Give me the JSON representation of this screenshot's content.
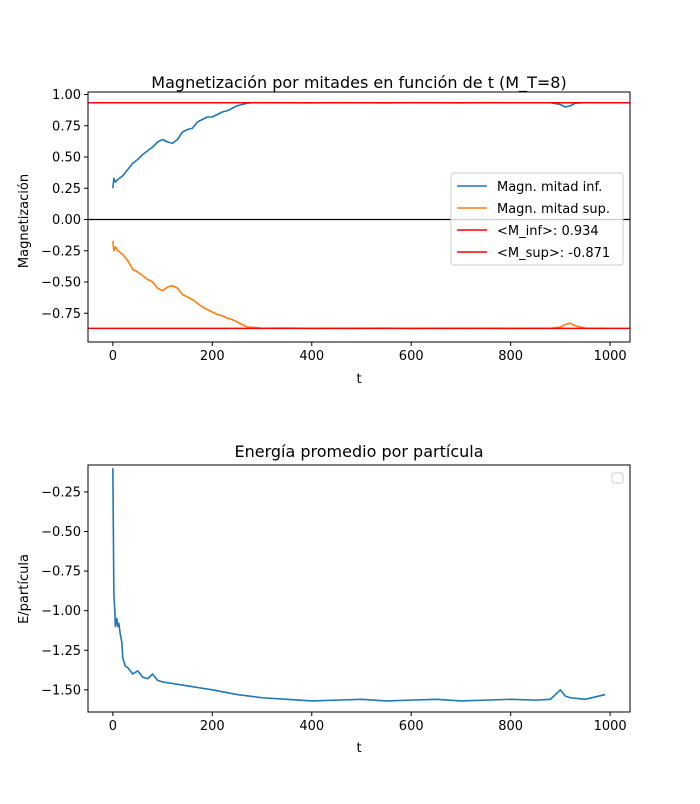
{
  "figure": {
    "colors": {
      "lower_half": "#1f77b4",
      "upper_half": "#ff7f0e",
      "mean_lines": "#ff0000",
      "zero_line": "#000000"
    }
  },
  "chart_data": [
    {
      "type": "line",
      "title": "Magnetización por mitades en función de t (M_T=8)",
      "xlabel": "t",
      "ylabel": "Magnetización",
      "xlim": [
        -50,
        1040
      ],
      "ylim": [
        -0.98,
        1.02
      ],
      "x_ticks": [
        0,
        200,
        400,
        600,
        800,
        1000
      ],
      "x_tick_labels": [
        "0",
        "200",
        "400",
        "600",
        "800",
        "1000"
      ],
      "y_ticks": [
        1.0,
        0.75,
        0.5,
        0.25,
        0.0,
        -0.25,
        -0.5,
        -0.75
      ],
      "y_tick_labels": [
        "1.00",
        "0.75",
        "0.50",
        "0.25",
        "0.00",
        "−0.25",
        "−0.50",
        "−0.75"
      ],
      "grid": false,
      "legend_position": "center-right",
      "series": [
        {
          "name": "Magn. mitad inf.",
          "kind": "line",
          "x": [
            0,
            2,
            5,
            10,
            20,
            30,
            40,
            50,
            60,
            70,
            80,
            90,
            100,
            110,
            120,
            130,
            140,
            150,
            160,
            170,
            180,
            190,
            200,
            210,
            220,
            230,
            240,
            250,
            260,
            270,
            280,
            300,
            350,
            400,
            450,
            500,
            550,
            600,
            650,
            700,
            750,
            800,
            850,
            880,
            900,
            910,
            920,
            930,
            950,
            980,
            990
          ],
          "y": [
            0.25,
            0.33,
            0.3,
            0.32,
            0.35,
            0.4,
            0.45,
            0.48,
            0.52,
            0.55,
            0.58,
            0.62,
            0.64,
            0.62,
            0.61,
            0.64,
            0.7,
            0.72,
            0.73,
            0.78,
            0.8,
            0.82,
            0.82,
            0.84,
            0.86,
            0.87,
            0.89,
            0.91,
            0.92,
            0.93,
            0.934,
            0.935,
            0.934,
            0.933,
            0.935,
            0.934,
            0.933,
            0.935,
            0.934,
            0.933,
            0.935,
            0.934,
            0.934,
            0.934,
            0.92,
            0.9,
            0.91,
            0.93,
            0.935,
            0.934,
            0.934
          ]
        },
        {
          "name": "Magn. mitad sup.",
          "kind": "line",
          "x": [
            0,
            2,
            5,
            10,
            20,
            30,
            40,
            50,
            60,
            70,
            80,
            90,
            100,
            110,
            120,
            130,
            140,
            150,
            160,
            170,
            180,
            190,
            200,
            210,
            220,
            230,
            240,
            250,
            260,
            270,
            280,
            300,
            350,
            400,
            450,
            500,
            550,
            600,
            650,
            700,
            750,
            800,
            850,
            880,
            900,
            910,
            920,
            930,
            950,
            980,
            990
          ],
          "y": [
            -0.17,
            -0.25,
            -0.22,
            -0.25,
            -0.28,
            -0.33,
            -0.4,
            -0.42,
            -0.45,
            -0.48,
            -0.5,
            -0.55,
            -0.57,
            -0.54,
            -0.53,
            -0.55,
            -0.6,
            -0.62,
            -0.64,
            -0.67,
            -0.7,
            -0.72,
            -0.74,
            -0.76,
            -0.77,
            -0.79,
            -0.8,
            -0.82,
            -0.84,
            -0.86,
            -0.862,
            -0.87,
            -0.868,
            -0.872,
            -0.87,
            -0.871,
            -0.869,
            -0.872,
            -0.87,
            -0.871,
            -0.87,
            -0.872,
            -0.87,
            -0.871,
            -0.86,
            -0.84,
            -0.83,
            -0.85,
            -0.87,
            -0.871,
            -0.871
          ]
        },
        {
          "name": "<M_inf>: 0.934",
          "kind": "hline",
          "y": 0.934
        },
        {
          "name": "<M_sup>: -0.871",
          "kind": "hline",
          "y": -0.871
        }
      ],
      "reference_line": {
        "y": 0.0
      }
    },
    {
      "type": "line",
      "title": "Energía promedio por partícula",
      "xlabel": "t",
      "ylabel": "E/partícula",
      "xlim": [
        -50,
        1040
      ],
      "ylim": [
        -1.64,
        -0.08
      ],
      "x_ticks": [
        0,
        200,
        400,
        600,
        800,
        1000
      ],
      "x_tick_labels": [
        "0",
        "200",
        "400",
        "600",
        "800",
        "1000"
      ],
      "y_ticks": [
        -0.25,
        -0.5,
        -0.75,
        -1.0,
        -1.25,
        -1.5
      ],
      "y_tick_labels": [
        "−0.25",
        "−0.50",
        "−0.75",
        "−1.00",
        "−1.25",
        "−1.50"
      ],
      "grid": false,
      "legend_position": "top-right",
      "series": [
        {
          "kind": "line",
          "x": [
            0,
            1,
            2,
            3,
            4,
            5,
            8,
            10,
            12,
            15,
            18,
            20,
            25,
            30,
            40,
            50,
            60,
            70,
            80,
            90,
            100,
            120,
            140,
            160,
            180,
            200,
            250,
            300,
            350,
            400,
            450,
            500,
            550,
            600,
            650,
            700,
            750,
            800,
            850,
            880,
            900,
            910,
            920,
            950,
            990
          ],
          "y": [
            -0.1,
            -0.5,
            -0.9,
            -0.95,
            -1.0,
            -1.1,
            -1.05,
            -1.1,
            -1.08,
            -1.15,
            -1.2,
            -1.3,
            -1.35,
            -1.36,
            -1.4,
            -1.38,
            -1.42,
            -1.43,
            -1.4,
            -1.44,
            -1.45,
            -1.46,
            -1.47,
            -1.48,
            -1.49,
            -1.5,
            -1.53,
            -1.55,
            -1.56,
            -1.57,
            -1.565,
            -1.56,
            -1.57,
            -1.565,
            -1.56,
            -1.57,
            -1.565,
            -1.56,
            -1.565,
            -1.56,
            -1.5,
            -1.54,
            -1.55,
            -1.56,
            -1.53
          ]
        }
      ]
    }
  ]
}
